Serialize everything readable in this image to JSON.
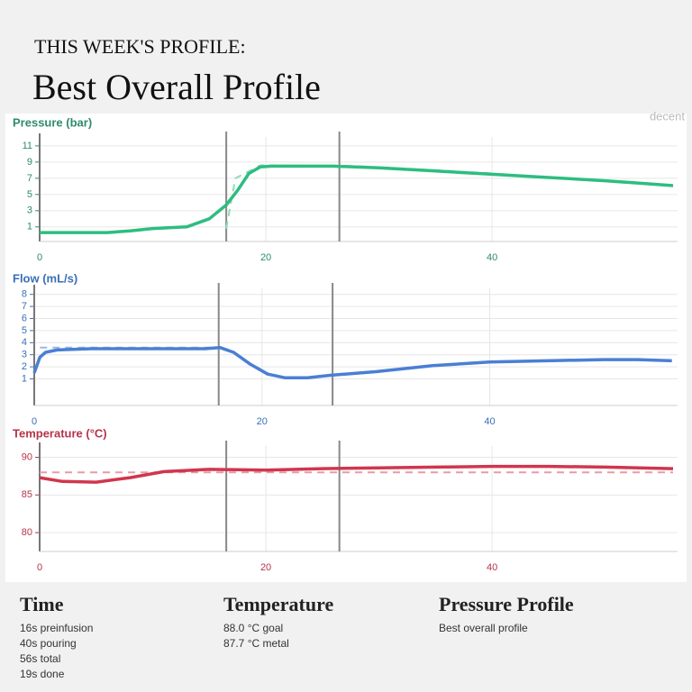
{
  "header": {
    "kicker": "THIS WEEK'S PROFILE:",
    "title": "Best Overall Profile",
    "logo": "decent"
  },
  "chart_data": [
    {
      "type": "line",
      "title": "Pressure (bar)",
      "color": "#2e8b6a",
      "xlim": [
        0,
        56.4
      ],
      "xticks": [
        0,
        20,
        40
      ],
      "ylim": [
        -0.8,
        12.1
      ],
      "yticks": [
        1,
        3,
        5,
        7,
        9,
        11
      ],
      "grid": true,
      "markers": [
        16.5,
        26.5
      ],
      "series": [
        {
          "color": "#2dbd80",
          "dashed": false,
          "x": [
            0,
            3,
            6,
            8,
            10,
            13,
            15,
            16.5,
            17.5,
            18.5,
            19.5,
            20.5,
            26,
            30,
            35,
            40,
            45,
            50,
            53,
            56
          ],
          "values": [
            0.3,
            0.3,
            0.3,
            0.5,
            0.8,
            1.0,
            2.0,
            3.7,
            5.5,
            7.6,
            8.4,
            8.5,
            8.5,
            8.3,
            7.9,
            7.5,
            7.1,
            6.7,
            6.4,
            6.1
          ]
        },
        {
          "color": "#8fdcb5",
          "dashed": true,
          "x": [
            16.5,
            17.3,
            19.5,
            28,
            35,
            40,
            45,
            50,
            56
          ],
          "values": [
            0.8,
            7.0,
            8.6,
            8.5,
            8.0,
            7.6,
            7.1,
            6.7,
            6.1
          ]
        }
      ]
    },
    {
      "type": "line",
      "title": "Flow (mL/s)",
      "color": "#3a6fb5",
      "xlim": [
        0,
        56.5
      ],
      "xticks": [
        0,
        20,
        40
      ],
      "ylim": [
        -1.2,
        8.5
      ],
      "yticks": [
        1,
        2,
        3,
        4,
        5,
        6,
        7,
        8
      ],
      "grid": true,
      "markers": [
        16.2,
        26.2
      ],
      "series": [
        {
          "color": "#4a7fd4",
          "dashed": false,
          "x": [
            0,
            0.5,
            1,
            2,
            5,
            10,
            15,
            16.3,
            17.5,
            19,
            20.5,
            22,
            24,
            26,
            30,
            35,
            40,
            45,
            50,
            53,
            56
          ],
          "values": [
            1.5,
            2.8,
            3.2,
            3.4,
            3.5,
            3.5,
            3.5,
            3.6,
            3.2,
            2.2,
            1.4,
            1.1,
            1.1,
            1.3,
            1.6,
            2.1,
            2.4,
            2.5,
            2.6,
            2.6,
            2.5
          ]
        },
        {
          "color": "#9db8e6",
          "dashed": true,
          "x": [
            0.5,
            16.2
          ],
          "values": [
            3.6,
            3.6
          ]
        }
      ]
    },
    {
      "type": "line",
      "title": "Temperature (°C)",
      "color": "#b5344a",
      "xlim": [
        0,
        56.4
      ],
      "xticks": [
        0,
        20,
        40
      ],
      "ylim": [
        77.5,
        91.5
      ],
      "yticks": [
        80,
        85,
        90
      ],
      "grid": true,
      "markers": [
        16.5,
        26.5
      ],
      "series": [
        {
          "color": "#d0364d",
          "dashed": false,
          "x": [
            0,
            2,
            5,
            8,
            11,
            15,
            20,
            25,
            30,
            35,
            40,
            45,
            50,
            56
          ],
          "values": [
            87.3,
            86.8,
            86.7,
            87.3,
            88.1,
            88.4,
            88.3,
            88.5,
            88.6,
            88.7,
            88.8,
            88.8,
            88.7,
            88.5
          ]
        },
        {
          "color": "#e89aa6",
          "dashed": true,
          "x": [
            0,
            56
          ],
          "values": [
            88.0,
            88.0
          ]
        }
      ]
    }
  ],
  "footer": [
    {
      "heading": "Time",
      "lines": [
        "16s preinfusion",
        "40s pouring",
        "56s total",
        "19s done"
      ]
    },
    {
      "heading": "Temperature",
      "lines": [
        "88.0 °C goal",
        "87.7 °C metal"
      ]
    },
    {
      "heading": "Pressure Profile",
      "lines": [
        "Best overall profile"
      ]
    }
  ]
}
